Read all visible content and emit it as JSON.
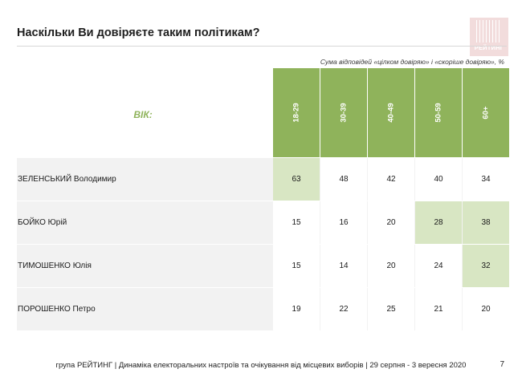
{
  "title": "Наскільки Ви довіряєте таким політикам?",
  "logo_text": "РЕЙТИНГ",
  "note": "Сума відповідей «цілком довіряю» і «скоріше довіряю», %",
  "colors": {
    "header_green": "#8fb35b",
    "highlight_green": "#d8e6c3",
    "row_bg": "#f2f2f2",
    "age_label": "#8fb35b",
    "logo_bg": "#f2dcdc"
  },
  "chart_data": {
    "type": "table",
    "row_header_label": "ВІК:",
    "categories": [
      "18-29",
      "30-39",
      "40-49",
      "50-59",
      "60+"
    ],
    "rows": [
      {
        "name": "ЗЕЛЕНСЬКИЙ Володимир",
        "values": [
          63,
          48,
          42,
          40,
          34
        ],
        "highlight": [
          0
        ]
      },
      {
        "name": "БОЙКО Юрій",
        "values": [
          15,
          16,
          20,
          28,
          38
        ],
        "highlight": [
          3,
          4
        ]
      },
      {
        "name": "ТИМОШЕНКО Юлія",
        "values": [
          15,
          14,
          20,
          24,
          32
        ],
        "highlight": [
          4
        ]
      },
      {
        "name": "ПОРОШЕНКО Петро",
        "values": [
          19,
          22,
          25,
          21,
          20
        ],
        "highlight": []
      }
    ]
  },
  "footer": "група РЕЙТИНГ | Динаміка електоральних настроїв та очікування від місцевих виборів | 29 серпня - 3 вересня 2020",
  "page_number": "7"
}
